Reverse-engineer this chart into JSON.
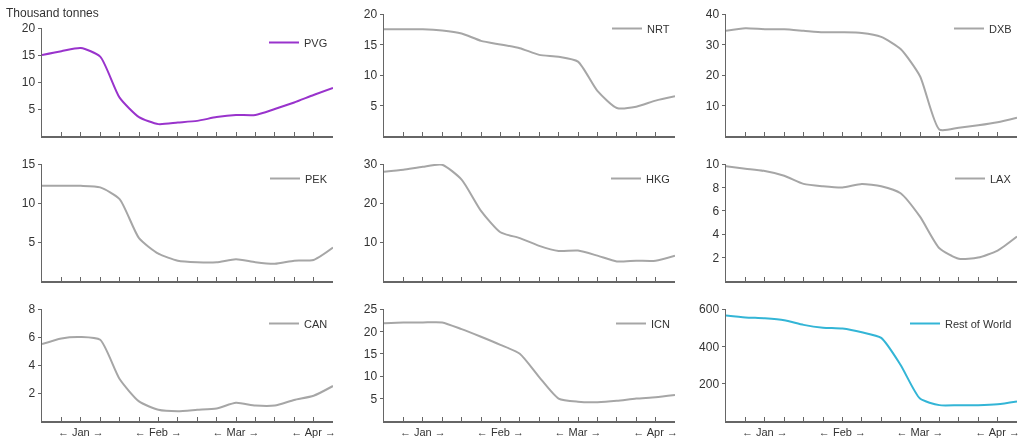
{
  "chart_data": [
    {
      "type": "line",
      "annotations": [
        "Thousand tonnes"
      ],
      "categories": [
        null,
        null,
        null,
        null,
        null,
        null,
        null,
        null,
        null,
        null,
        null,
        null,
        null,
        null,
        null,
        null
      ],
      "series": [
        {
          "name": "PVG",
          "color": "#9933cc",
          "values": [
            15,
            15.7,
            16.3,
            14.7,
            7.1,
            3.5,
            2.2,
            2.5,
            2.8,
            3.5,
            3.9,
            3.9,
            5,
            6.2,
            7.6,
            8.9
          ]
        }
      ],
      "ylim": [
        0,
        20
      ],
      "yticks": [
        5,
        10,
        15,
        20
      ],
      "tick_labels": "y",
      "legend": "top right",
      "grid": false,
      "marker": "none",
      "line_style": "solid"
    },
    {
      "type": "line",
      "categories": [
        null,
        null,
        null,
        null,
        null,
        null,
        null,
        null,
        null,
        null,
        null,
        null,
        null,
        null,
        null,
        null
      ],
      "series": [
        {
          "name": "NRT",
          "color": "#a6a6a6",
          "values": [
            17.5,
            17.5,
            17.5,
            17.3,
            16.8,
            15.6,
            15,
            14.4,
            13.3,
            13,
            12.2,
            7.4,
            4.6,
            4.8,
            5.8,
            6.5
          ]
        }
      ],
      "ylim": [
        0,
        20
      ],
      "yticks": [
        5,
        10,
        15,
        20
      ],
      "tick_labels": "y",
      "legend": "top right",
      "grid": false,
      "marker": "none",
      "line_style": "solid"
    },
    {
      "type": "line",
      "categories": [
        null,
        null,
        null,
        null,
        null,
        null,
        null,
        null,
        null,
        null,
        null,
        null,
        null,
        null,
        null,
        null
      ],
      "series": [
        {
          "name": "DXB",
          "color": "#a6a6a6",
          "values": [
            34.5,
            35.3,
            35,
            35,
            34.5,
            34,
            34,
            33.8,
            32.5,
            28.5,
            19.6,
            2.1,
            2.7,
            3.5,
            4.5,
            6
          ]
        }
      ],
      "ylim": [
        0,
        40
      ],
      "yticks": [
        10,
        20,
        30,
        40
      ],
      "tick_labels": "y",
      "legend": "top right",
      "grid": false,
      "marker": "none",
      "line_style": "solid"
    },
    {
      "type": "line",
      "categories": [
        null,
        null,
        null,
        null,
        null,
        null,
        null,
        null,
        null,
        null,
        null,
        null,
        null,
        null,
        null,
        null
      ],
      "series": [
        {
          "name": "PEK",
          "color": "#a6a6a6",
          "values": [
            12.2,
            12.2,
            12.2,
            12,
            10.5,
            5.5,
            3.5,
            2.6,
            2.4,
            2.4,
            2.8,
            2.4,
            2.2,
            2.6,
            2.7,
            4.3
          ]
        }
      ],
      "ylim": [
        0,
        15
      ],
      "yticks": [
        5,
        10,
        15
      ],
      "tick_labels": "y",
      "legend": "top right",
      "grid": false,
      "marker": "none",
      "line_style": "solid"
    },
    {
      "type": "line",
      "categories": [
        null,
        null,
        null,
        null,
        null,
        null,
        null,
        null,
        null,
        null,
        null,
        null,
        null,
        null,
        null,
        null
      ],
      "series": [
        {
          "name": "HKG",
          "color": "#a6a6a6",
          "values": [
            28,
            28.5,
            29.3,
            29.8,
            26,
            18,
            12.5,
            11,
            9,
            7.7,
            7.8,
            6.5,
            5,
            5.2,
            5.2,
            6.5
          ]
        }
      ],
      "ylim": [
        0,
        30
      ],
      "yticks": [
        10,
        20,
        30
      ],
      "tick_labels": "y",
      "legend": "top right",
      "grid": false,
      "marker": "none",
      "line_style": "solid"
    },
    {
      "type": "line",
      "categories": [
        null,
        null,
        null,
        null,
        null,
        null,
        null,
        null,
        null,
        null,
        null,
        null,
        null,
        null,
        null,
        null
      ],
      "series": [
        {
          "name": "LAX",
          "color": "#a6a6a6",
          "values": [
            9.8,
            9.6,
            9.4,
            9,
            8.3,
            8.1,
            8,
            8.3,
            8.1,
            7.5,
            5.5,
            2.8,
            1.9,
            2,
            2.6,
            3.8
          ]
        }
      ],
      "ylim": [
        0,
        10
      ],
      "yticks": [
        2,
        4,
        6,
        8,
        10
      ],
      "tick_labels": "y",
      "legend": "top right",
      "grid": false,
      "marker": "none",
      "line_style": "solid"
    },
    {
      "type": "line",
      "categories": [
        null,
        null,
        "← Jan →",
        null,
        null,
        null,
        "← Feb →",
        null,
        null,
        null,
        "← Mar →",
        null,
        null,
        null,
        "← Apr →",
        null
      ],
      "series": [
        {
          "name": "CAN",
          "color": "#a6a6a6",
          "values": [
            5.5,
            5.9,
            6,
            5.8,
            3,
            1.4,
            0.8,
            0.7,
            0.8,
            0.9,
            1.3,
            1.1,
            1.1,
            1.5,
            1.8,
            2.5
          ]
        }
      ],
      "ylim": [
        0,
        8
      ],
      "yticks": [
        2,
        4,
        6,
        8
      ],
      "legend": "top right",
      "grid": false,
      "marker": "none",
      "line_style": "solid"
    },
    {
      "type": "line",
      "categories": [
        null,
        null,
        "← Jan →",
        null,
        null,
        null,
        "← Feb →",
        null,
        null,
        null,
        "← Mar →",
        null,
        null,
        null,
        "← Apr →",
        null
      ],
      "series": [
        {
          "name": "ICN",
          "color": "#a6a6a6",
          "values": [
            21.8,
            22,
            22,
            22,
            20.5,
            18.8,
            17,
            15,
            9.8,
            5,
            4.3,
            4.2,
            4.5,
            5,
            5.3,
            5.8
          ]
        }
      ],
      "ylim": [
        0,
        25
      ],
      "yticks": [
        5,
        10,
        15,
        20,
        25
      ],
      "legend": "top right",
      "grid": false,
      "marker": "none",
      "line_style": "solid"
    },
    {
      "type": "line",
      "categories": [
        null,
        null,
        "← Jan →",
        null,
        null,
        null,
        "← Feb →",
        null,
        null,
        null,
        "← Mar →",
        null,
        null,
        null,
        "← Apr →",
        null
      ],
      "series": [
        {
          "name": "Rest of World",
          "color": "#33b5d6",
          "values": [
            565,
            555,
            550,
            540,
            515,
            500,
            495,
            475,
            445,
            300,
            120,
            85,
            85,
            85,
            90,
            105
          ]
        }
      ],
      "ylim": [
        0,
        600
      ],
      "yticks": [
        200,
        400,
        600
      ],
      "legend": "top right",
      "grid": false,
      "marker": "none",
      "line_style": "solid"
    }
  ]
}
